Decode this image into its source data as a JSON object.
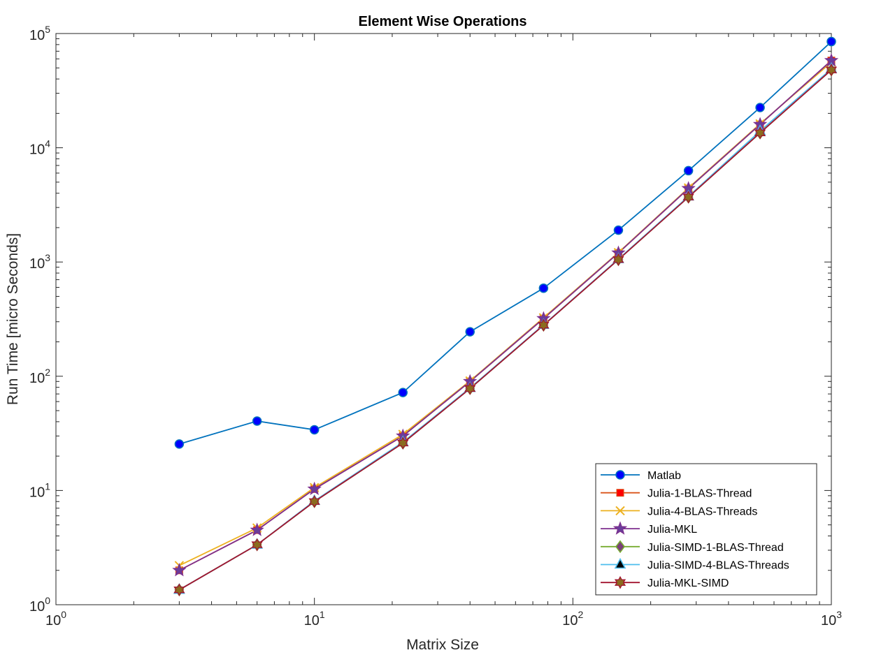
{
  "chart_data": {
    "type": "line",
    "title": "Element Wise Operations",
    "xlabel": "Matrix Size",
    "ylabel": "Run Time  [micro Seconds]",
    "xscale": "log",
    "yscale": "log",
    "xlim": [
      1,
      1000
    ],
    "ylim": [
      1,
      100000
    ],
    "x_ticks": [
      {
        "value": 1,
        "base": "10",
        "exp": "0"
      },
      {
        "value": 10,
        "base": "10",
        "exp": "1"
      },
      {
        "value": 100,
        "base": "10",
        "exp": "2"
      },
      {
        "value": 1000,
        "base": "10",
        "exp": "3"
      }
    ],
    "y_ticks": [
      {
        "value": 1,
        "base": "10",
        "exp": "0"
      },
      {
        "value": 10,
        "base": "10",
        "exp": "1"
      },
      {
        "value": 100,
        "base": "10",
        "exp": "2"
      },
      {
        "value": 1000,
        "base": "10",
        "exp": "3"
      },
      {
        "value": 10000,
        "base": "10",
        "exp": "4"
      },
      {
        "value": 100000,
        "base": "10",
        "exp": "5"
      }
    ],
    "grid": false,
    "legend_position": "bottom-right",
    "x": [
      3,
      6,
      10,
      22,
      40,
      77,
      150,
      280,
      530,
      1000
    ],
    "series": [
      {
        "name": "Matlab",
        "color": "#0072BD",
        "marker": "circle",
        "values": [
          25.5,
          40.5,
          34,
          72,
          245,
          590,
          1900,
          6300,
          22500,
          85000
        ]
      },
      {
        "name": "Julia-1-BLAS-Thread",
        "color": "#D95319",
        "marker": "square",
        "values": [
          2.0,
          4.5,
          10.3,
          30,
          90,
          320,
          1200,
          4400,
          16000,
          58000
        ]
      },
      {
        "name": "Julia-4-BLAS-Threads",
        "color": "#EDB120",
        "marker": "x",
        "values": [
          2.2,
          4.7,
          10.6,
          31,
          91,
          325,
          1210,
          4450,
          16200,
          56000
        ]
      },
      {
        "name": "Julia-MKL",
        "color": "#7E2F8E",
        "marker": "star",
        "values": [
          2.0,
          4.5,
          10.3,
          30,
          90,
          320,
          1200,
          4400,
          16000,
          58000
        ]
      },
      {
        "name": "Julia-SIMD-1-BLAS-Thread",
        "color": "#77AC30",
        "marker": "diamond",
        "values": [
          1.35,
          3.35,
          8.0,
          26,
          78,
          280,
          1050,
          3700,
          13500,
          48000
        ]
      },
      {
        "name": "Julia-SIMD-4-BLAS-Threads",
        "color": "#4DBEEE",
        "marker": "triangle",
        "values": [
          1.35,
          3.35,
          8.1,
          26.5,
          79,
          282,
          1060,
          3750,
          14000,
          49000
        ]
      },
      {
        "name": "Julia-MKL-SIMD",
        "color": "#A2142F",
        "marker": "hexagram",
        "values": [
          1.35,
          3.35,
          8.0,
          26,
          78,
          280,
          1050,
          3700,
          13500,
          48000
        ]
      }
    ]
  }
}
